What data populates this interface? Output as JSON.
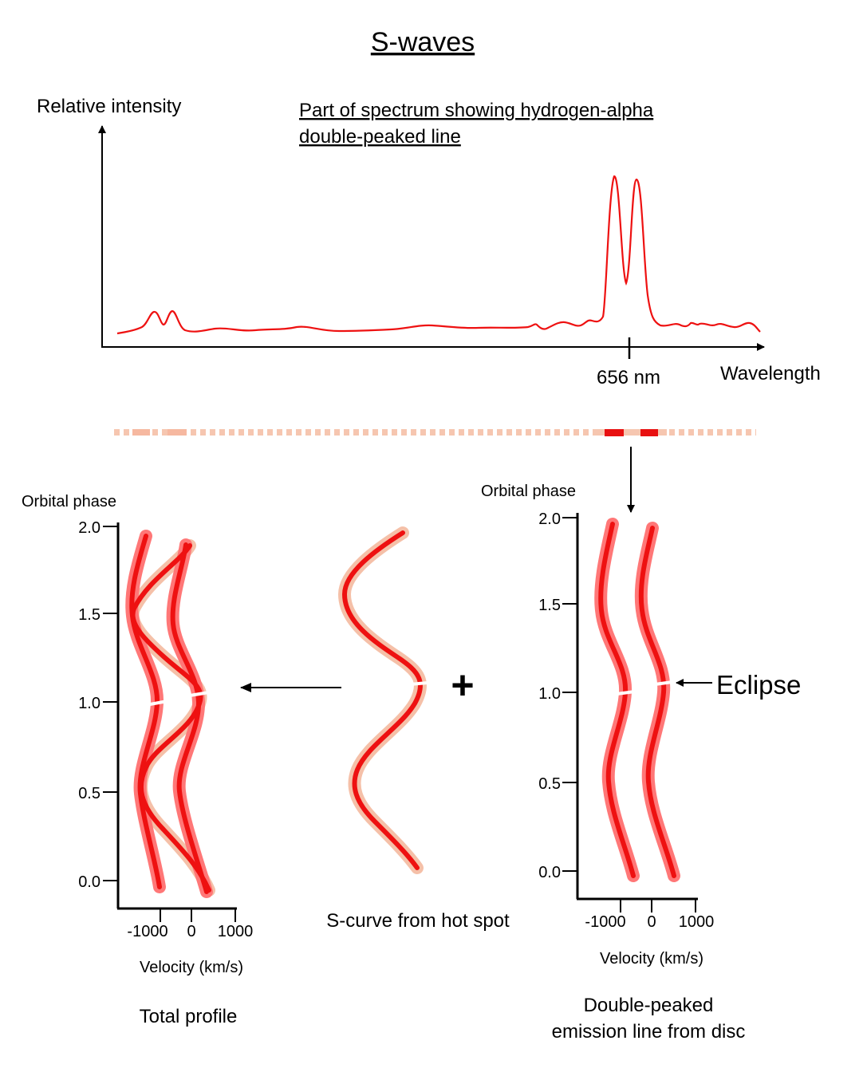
{
  "title": "S-waves",
  "spectrum": {
    "y_label": "Relative intensity",
    "caption_line1": "Part of spectrum showing hydrogen-alpha",
    "caption_line2": "double-peaked line",
    "x_label": "Wavelength",
    "marker_label": "656 nm"
  },
  "total_profile": {
    "y_title": "Orbital phase",
    "y_ticks": [
      "0.0",
      "0.5",
      "1.0",
      "1.5",
      "2.0"
    ],
    "x_ticks": [
      "-1000",
      "0",
      "1000"
    ],
    "x_label": "Velocity (km/s)",
    "caption": "Total profile"
  },
  "hot_spot": {
    "caption": "S-curve from hot spot",
    "plus": "+"
  },
  "disc": {
    "y_title": "Orbital phase",
    "y_ticks": [
      "0.0",
      "0.5",
      "1.0",
      "1.5",
      "2.0"
    ],
    "x_ticks": [
      "-1000",
      "0",
      "1000"
    ],
    "x_label": "Velocity (km/s)",
    "caption_line1": "Double-peaked",
    "caption_line2": "emission line from disc",
    "eclipse_label": "Eclipse"
  },
  "colors": {
    "line": "#ee1111",
    "halo_disc": "#ff7777",
    "halo_spot": "#f5c0a8",
    "strip_light": "#f6c6b0",
    "strip_dark": "#e81010"
  }
}
